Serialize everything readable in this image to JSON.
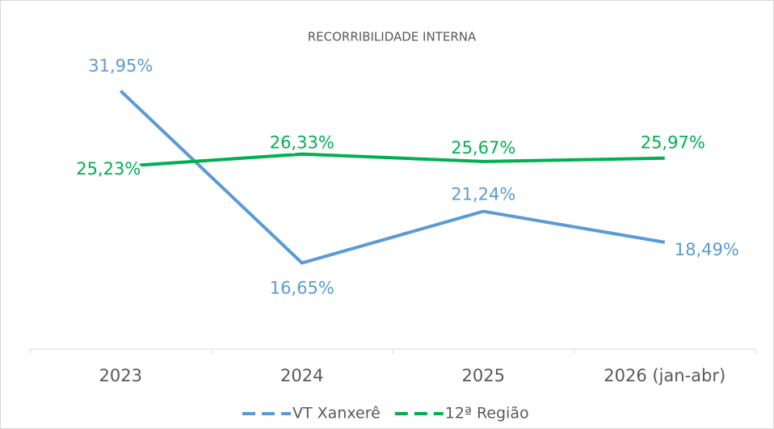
{
  "chart_data": {
    "type": "line",
    "title": "RECORRIBILIDADE INTERNA",
    "categories": [
      "2023",
      "2024",
      "2025",
      "2026 (jan-abr)"
    ],
    "series": [
      {
        "name": "VT Xanxerê",
        "color": "#5b9bd5",
        "values": [
          31.95,
          16.65,
          21.24,
          18.49
        ],
        "value_labels": [
          "31,95%",
          "16,65%",
          "21,24%",
          "18,49%"
        ]
      },
      {
        "name": "12ª Região",
        "color": "#00b050",
        "values": [
          25.23,
          26.33,
          25.67,
          25.97
        ],
        "value_labels": [
          "25,23%",
          "26,33%",
          "25,67%",
          "25,97%"
        ]
      }
    ],
    "ylim": [
      9,
      35
    ],
    "legend": "bottom"
  }
}
